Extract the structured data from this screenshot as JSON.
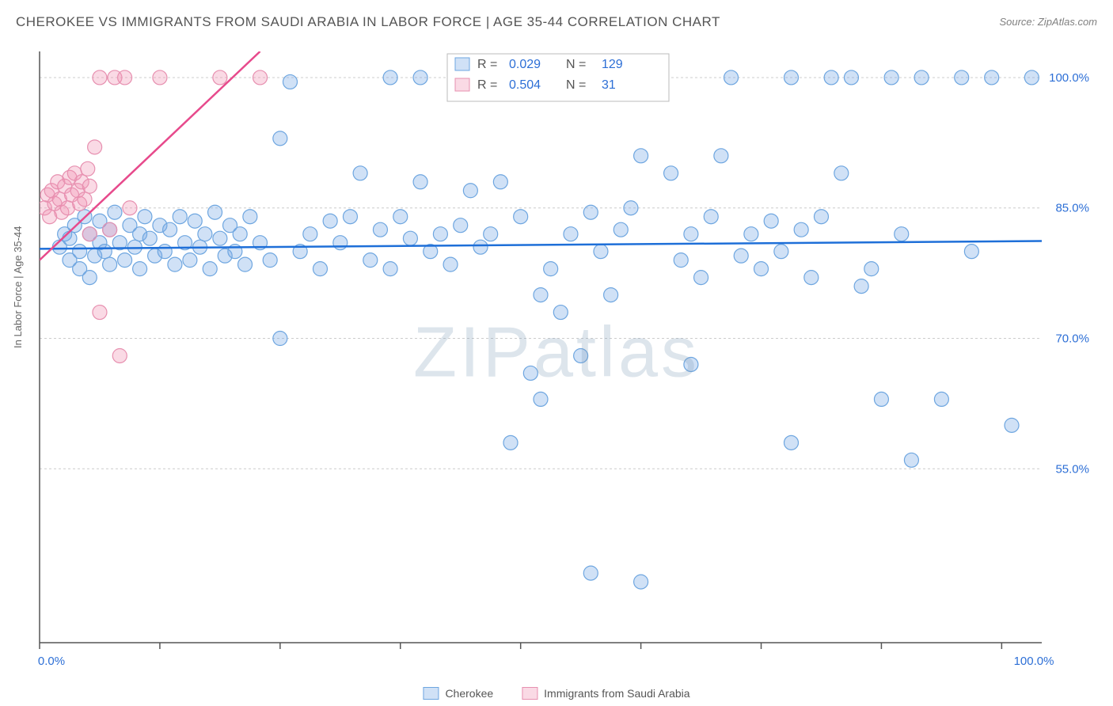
{
  "title": "CHEROKEE VS IMMIGRANTS FROM SAUDI ARABIA IN LABOR FORCE | AGE 35-44 CORRELATION CHART",
  "source": "Source: ZipAtlas.com",
  "ylabel": "In Labor Force | Age 35-44",
  "watermark": "ZIPatlas",
  "chart": {
    "type": "scatter",
    "plot_bg": "#ffffff",
    "grid_color": "#cccccc",
    "axis_color": "#555555",
    "xlim": [
      0,
      100
    ],
    "ylim": [
      35,
      103
    ],
    "x_ticks": [
      0,
      12,
      24,
      36,
      48,
      60,
      72,
      84,
      96
    ],
    "x_tick_labels_shown": {
      "0": "0.0%",
      "100": "100.0%"
    },
    "y_ticks": [
      55,
      70,
      85,
      100
    ],
    "y_tick_labels": [
      "55.0%",
      "70.0%",
      "85.0%",
      "100.0%"
    ],
    "marker_radius": 9,
    "marker_stroke_width": 1.2,
    "trend_line_width": 2.5,
    "series": [
      {
        "name": "Cherokee",
        "fill": "rgba(120,170,230,0.35)",
        "stroke": "#6ea6e0",
        "line_stroke": "#1e6fd8",
        "R": "0.029",
        "N": "129",
        "trend": {
          "x1": 0,
          "y1": 80.3,
          "x2": 100,
          "y2": 81.2
        },
        "points": [
          [
            2,
            80.5
          ],
          [
            2.5,
            82
          ],
          [
            3,
            79
          ],
          [
            3,
            81.5
          ],
          [
            3.5,
            83
          ],
          [
            4,
            80
          ],
          [
            4,
            78
          ],
          [
            4.5,
            84
          ],
          [
            5,
            82
          ],
          [
            5,
            77
          ],
          [
            5.5,
            79.5
          ],
          [
            6,
            81
          ],
          [
            6,
            83.5
          ],
          [
            6.5,
            80
          ],
          [
            7,
            78.5
          ],
          [
            7,
            82.5
          ],
          [
            7.5,
            84.5
          ],
          [
            8,
            81
          ],
          [
            8.5,
            79
          ],
          [
            9,
            83
          ],
          [
            9.5,
            80.5
          ],
          [
            10,
            82
          ],
          [
            10,
            78
          ],
          [
            10.5,
            84
          ],
          [
            11,
            81.5
          ],
          [
            11.5,
            79.5
          ],
          [
            12,
            83
          ],
          [
            12.5,
            80
          ],
          [
            13,
            82.5
          ],
          [
            13.5,
            78.5
          ],
          [
            14,
            84
          ],
          [
            14.5,
            81
          ],
          [
            15,
            79
          ],
          [
            15.5,
            83.5
          ],
          [
            16,
            80.5
          ],
          [
            16.5,
            82
          ],
          [
            17,
            78
          ],
          [
            17.5,
            84.5
          ],
          [
            18,
            81.5
          ],
          [
            18.5,
            79.5
          ],
          [
            19,
            83
          ],
          [
            19.5,
            80
          ],
          [
            20,
            82
          ],
          [
            20.5,
            78.5
          ],
          [
            21,
            84
          ],
          [
            22,
            81
          ],
          [
            23,
            79
          ],
          [
            24,
            70
          ],
          [
            24,
            93
          ],
          [
            25,
            99.5
          ],
          [
            26,
            80
          ],
          [
            27,
            82
          ],
          [
            28,
            78
          ],
          [
            29,
            83.5
          ],
          [
            30,
            81
          ],
          [
            31,
            84
          ],
          [
            32,
            89
          ],
          [
            33,
            79
          ],
          [
            34,
            82.5
          ],
          [
            35,
            78
          ],
          [
            35,
            100
          ],
          [
            36,
            84
          ],
          [
            37,
            81.5
          ],
          [
            38,
            100
          ],
          [
            38,
            88
          ],
          [
            39,
            80
          ],
          [
            40,
            82
          ],
          [
            41,
            78.5
          ],
          [
            42,
            83
          ],
          [
            43,
            87
          ],
          [
            44,
            80.5
          ],
          [
            44,
            100
          ],
          [
            45,
            82
          ],
          [
            46,
            88
          ],
          [
            47,
            58
          ],
          [
            48,
            84
          ],
          [
            49,
            66
          ],
          [
            50,
            63
          ],
          [
            50,
            75
          ],
          [
            50,
            100
          ],
          [
            51,
            78
          ],
          [
            52,
            73
          ],
          [
            53,
            82
          ],
          [
            54,
            68
          ],
          [
            55,
            84.5
          ],
          [
            55,
            43
          ],
          [
            55,
            100
          ],
          [
            56,
            80
          ],
          [
            57,
            75
          ],
          [
            57,
            100
          ],
          [
            58,
            82.5
          ],
          [
            59,
            85
          ],
          [
            60,
            42
          ],
          [
            60,
            91
          ],
          [
            62,
            100
          ],
          [
            63,
            89
          ],
          [
            64,
            79
          ],
          [
            65,
            82
          ],
          [
            65,
            67
          ],
          [
            66,
            77
          ],
          [
            67,
            84
          ],
          [
            68,
            91
          ],
          [
            69,
            100
          ],
          [
            70,
            79.5
          ],
          [
            71,
            82
          ],
          [
            72,
            78
          ],
          [
            73,
            83.5
          ],
          [
            74,
            80
          ],
          [
            75,
            58
          ],
          [
            75,
            100
          ],
          [
            76,
            82.5
          ],
          [
            77,
            77
          ],
          [
            78,
            84
          ],
          [
            79,
            100
          ],
          [
            80,
            89
          ],
          [
            81,
            100
          ],
          [
            82,
            76
          ],
          [
            83,
            78
          ],
          [
            84,
            63
          ],
          [
            85,
            100
          ],
          [
            86,
            82
          ],
          [
            87,
            56
          ],
          [
            88,
            100
          ],
          [
            90,
            63
          ],
          [
            92,
            100
          ],
          [
            93,
            80
          ],
          [
            95,
            100
          ],
          [
            97,
            60
          ],
          [
            99,
            100
          ]
        ]
      },
      {
        "name": "Immigrants from Saudi Arabia",
        "fill": "rgba(240,150,180,0.35)",
        "stroke": "#e790b0",
        "line_stroke": "#e74a8c",
        "R": "0.504",
        "N": "31",
        "trend": {
          "x1": 0,
          "y1": 79,
          "x2": 22,
          "y2": 103
        },
        "points": [
          [
            0.5,
            85
          ],
          [
            0.8,
            86.5
          ],
          [
            1,
            84
          ],
          [
            1.2,
            87
          ],
          [
            1.5,
            85.5
          ],
          [
            1.8,
            88
          ],
          [
            2,
            86
          ],
          [
            2.2,
            84.5
          ],
          [
            2.5,
            87.5
          ],
          [
            2.8,
            85
          ],
          [
            3,
            88.5
          ],
          [
            3.2,
            86.5
          ],
          [
            3.5,
            89
          ],
          [
            3.8,
            87
          ],
          [
            4,
            85.5
          ],
          [
            4.2,
            88
          ],
          [
            4.5,
            86
          ],
          [
            4.8,
            89.5
          ],
          [
            5,
            87.5
          ],
          [
            5,
            82
          ],
          [
            5.5,
            92
          ],
          [
            6,
            73
          ],
          [
            6,
            100
          ],
          [
            7,
            82.5
          ],
          [
            7.5,
            100
          ],
          [
            8,
            68
          ],
          [
            8.5,
            100
          ],
          [
            9,
            85
          ],
          [
            12,
            100
          ],
          [
            18,
            100
          ],
          [
            22,
            100
          ]
        ]
      }
    ]
  },
  "legend": {
    "cherokee_label": "Cherokee",
    "saudi_label": "Immigrants from Saudi Arabia"
  }
}
